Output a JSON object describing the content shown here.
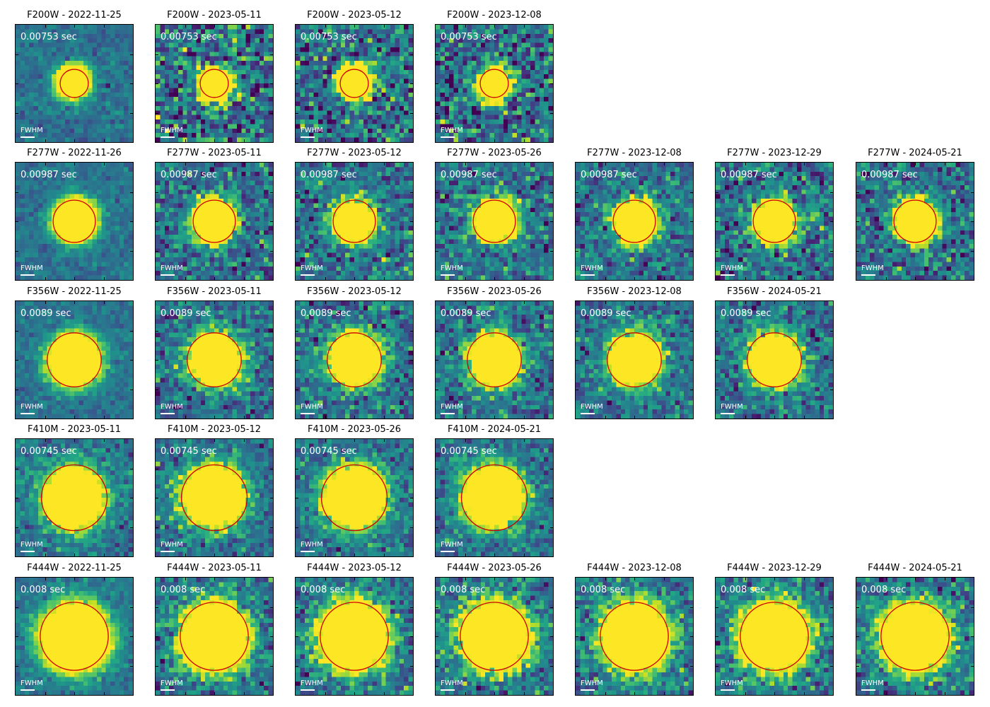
{
  "rows": [
    {
      "filter": "F200W",
      "exposure": "0.00753 sec",
      "aperture_frac": 0.12,
      "panels": [
        {
          "title": "F200W - 2022-11-25",
          "col": 0,
          "noise": 0.35
        },
        {
          "title": "F200W - 2023-05-11",
          "col": 1,
          "noise": 1.0
        },
        {
          "title": "F200W - 2023-05-12",
          "col": 2,
          "noise": 1.0
        },
        {
          "title": "F200W - 2023-12-08",
          "col": 3,
          "noise": 1.0
        }
      ]
    },
    {
      "filter": "F277W",
      "exposure": "0.00987 sec",
      "aperture_frac": 0.18,
      "panels": [
        {
          "title": "F277W - 2022-11-26",
          "col": 0,
          "noise": 0.3
        },
        {
          "title": "F277W - 2023-05-11",
          "col": 1,
          "noise": 0.75
        },
        {
          "title": "F277W - 2023-05-12",
          "col": 2,
          "noise": 0.75
        },
        {
          "title": "F277W - 2023-05-26",
          "col": 3,
          "noise": 0.75
        },
        {
          "title": "F277W - 2023-12-08",
          "col": 4,
          "noise": 0.65
        },
        {
          "title": "F277W - 2023-12-29",
          "col": 5,
          "noise": 0.8
        },
        {
          "title": "F277W - 2024-05-21",
          "col": 6,
          "noise": 0.75
        }
      ]
    },
    {
      "filter": "F356W",
      "exposure": "0.0089 sec",
      "aperture_frac": 0.23,
      "panels": [
        {
          "title": "F356W - 2022-11-25",
          "col": 0,
          "noise": 0.3
        },
        {
          "title": "F356W - 2023-05-11",
          "col": 1,
          "noise": 0.7
        },
        {
          "title": "F356W - 2023-05-12",
          "col": 2,
          "noise": 0.7
        },
        {
          "title": "F356W - 2023-05-26",
          "col": 3,
          "noise": 0.7
        },
        {
          "title": "F356W - 2023-12-08",
          "col": 4,
          "noise": 0.6
        },
        {
          "title": "F356W - 2024-05-21",
          "col": 5,
          "noise": 0.7
        }
      ]
    },
    {
      "filter": "F410M",
      "exposure": "0.00745 sec",
      "aperture_frac": 0.28,
      "panels": [
        {
          "title": "F410M - 2023-05-11",
          "col": 0,
          "noise": 0.55
        },
        {
          "title": "F410M - 2023-05-12",
          "col": 1,
          "noise": 0.55
        },
        {
          "title": "F410M - 2023-05-26",
          "col": 2,
          "noise": 0.55
        },
        {
          "title": "F410M - 2024-05-21",
          "col": 3,
          "noise": 0.55
        }
      ]
    },
    {
      "filter": "F444W",
      "exposure": "0.008 sec",
      "aperture_frac": 0.29,
      "panels": [
        {
          "title": "F444W - 2022-11-25",
          "col": 0,
          "noise": 0.35
        },
        {
          "title": "F444W - 2023-05-11",
          "col": 1,
          "noise": 0.7
        },
        {
          "title": "F444W - 2023-05-12",
          "col": 2,
          "noise": 0.7
        },
        {
          "title": "F444W - 2023-05-26",
          "col": 3,
          "noise": 0.75
        },
        {
          "title": "F444W - 2023-12-08",
          "col": 4,
          "noise": 0.65
        },
        {
          "title": "F444W - 2023-12-29",
          "col": 5,
          "noise": 0.7
        },
        {
          "title": "F444W - 2024-05-21",
          "col": 6,
          "noise": 0.7
        }
      ]
    }
  ],
  "fwhm_label": "FWHM",
  "colors": {
    "aperture": "#cc0000",
    "colormap": "viridis",
    "annotation_text": "#ffffff"
  }
}
